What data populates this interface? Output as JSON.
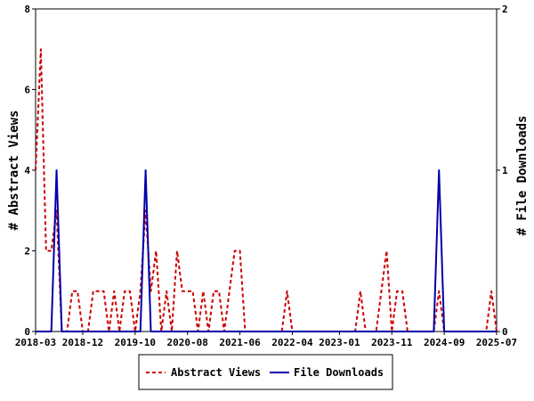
{
  "chart_data": {
    "type": "line",
    "x_tick_labels": [
      "2018-03",
      "2018-12",
      "2019-10",
      "2020-08",
      "2021-06",
      "2022-04",
      "2023-01",
      "2023-11",
      "2024-09",
      "2025-07"
    ],
    "x_start": "2018-03",
    "x_end": "2025-07",
    "left_axis": {
      "label": "# Abstract Views",
      "ylim": [
        0,
        8
      ],
      "ticks": [
        "0",
        "2",
        "4",
        "6",
        "8"
      ]
    },
    "right_axis": {
      "label": "# File Downloads",
      "ylim": [
        0,
        2
      ],
      "ticks": [
        "0",
        "1",
        "2"
      ]
    },
    "grid": false,
    "legend_position": "bottom",
    "series": [
      {
        "name": "Abstract Views",
        "axis": "left",
        "color": "#cc0000",
        "style": "dashed",
        "months": [
          "2018-03",
          "2018-04",
          "2018-05",
          "2018-06",
          "2018-07",
          "2018-08",
          "2018-09",
          "2018-10",
          "2018-11",
          "2018-12",
          "2019-01",
          "2019-02",
          "2019-03",
          "2019-04",
          "2019-05",
          "2019-06",
          "2019-07",
          "2019-08",
          "2019-09",
          "2019-10",
          "2019-11",
          "2019-12",
          "2020-01",
          "2020-02",
          "2020-03",
          "2020-04",
          "2020-05",
          "2020-06",
          "2020-07",
          "2020-08",
          "2020-09",
          "2020-10",
          "2020-11",
          "2020-12",
          "2021-01",
          "2021-02",
          "2021-03",
          "2021-04",
          "2021-05",
          "2021-06",
          "2021-07",
          "2021-08",
          "2021-09",
          "2021-10",
          "2021-11",
          "2021-12",
          "2022-01",
          "2022-02",
          "2022-03",
          "2022-04",
          "2022-05",
          "2022-06",
          "2022-07",
          "2022-08",
          "2022-09",
          "2022-10",
          "2022-11",
          "2022-12",
          "2023-01",
          "2023-02",
          "2023-03",
          "2023-04",
          "2023-05",
          "2023-06",
          "2023-07",
          "2023-08",
          "2023-09",
          "2023-10",
          "2023-11",
          "2023-12",
          "2024-01",
          "2024-02",
          "2024-03",
          "2024-04",
          "2024-05",
          "2024-06",
          "2024-07",
          "2024-08",
          "2024-09",
          "2024-10",
          "2024-11",
          "2024-12",
          "2025-01",
          "2025-02",
          "2025-03",
          "2025-04",
          "2025-05",
          "2025-06",
          "2025-07"
        ],
        "values": [
          4,
          7,
          2,
          2,
          3,
          0,
          0,
          1,
          1,
          0,
          0,
          1,
          1,
          1,
          0,
          1,
          0,
          1,
          1,
          0,
          1,
          3,
          1,
          2,
          0,
          1,
          0,
          2,
          1,
          1,
          1,
          0,
          1,
          0,
          1,
          1,
          0,
          1,
          2,
          2,
          0,
          0,
          0,
          0,
          0,
          0,
          0,
          0,
          1,
          0,
          0,
          0,
          0,
          0,
          0,
          0,
          0,
          0,
          0,
          0,
          0,
          0,
          1,
          0,
          0,
          0,
          1,
          2,
          0,
          1,
          1,
          0,
          0,
          0,
          0,
          0,
          0,
          1,
          0,
          0,
          0,
          0,
          0,
          0,
          0,
          0,
          0,
          1,
          0
        ]
      },
      {
        "name": "File Downloads",
        "axis": "right",
        "color": "#0000aa",
        "style": "solid",
        "months": [
          "2018-03",
          "2018-04",
          "2018-05",
          "2018-06",
          "2018-07",
          "2018-08",
          "2018-09",
          "2018-10",
          "2018-11",
          "2018-12",
          "2019-01",
          "2019-02",
          "2019-03",
          "2019-04",
          "2019-05",
          "2019-06",
          "2019-07",
          "2019-08",
          "2019-09",
          "2019-10",
          "2019-11",
          "2019-12",
          "2020-01",
          "2020-02",
          "2020-03",
          "2020-04",
          "2020-05",
          "2020-06",
          "2020-07",
          "2020-08",
          "2020-09",
          "2020-10",
          "2020-11",
          "2020-12",
          "2021-01",
          "2021-02",
          "2021-03",
          "2021-04",
          "2021-05",
          "2021-06",
          "2021-07",
          "2021-08",
          "2021-09",
          "2021-10",
          "2021-11",
          "2021-12",
          "2022-01",
          "2022-02",
          "2022-03",
          "2022-04",
          "2022-05",
          "2022-06",
          "2022-07",
          "2022-08",
          "2022-09",
          "2022-10",
          "2022-11",
          "2022-12",
          "2023-01",
          "2023-02",
          "2023-03",
          "2023-04",
          "2023-05",
          "2023-06",
          "2023-07",
          "2023-08",
          "2023-09",
          "2023-10",
          "2023-11",
          "2023-12",
          "2024-01",
          "2024-02",
          "2024-03",
          "2024-04",
          "2024-05",
          "2024-06",
          "2024-07",
          "2024-08",
          "2024-09",
          "2024-10",
          "2024-11",
          "2024-12",
          "2025-01",
          "2025-02",
          "2025-03",
          "2025-04",
          "2025-05",
          "2025-06",
          "2025-07"
        ],
        "values": [
          0,
          0,
          0,
          0,
          1,
          0,
          0,
          0,
          0,
          0,
          0,
          0,
          0,
          0,
          0,
          0,
          0,
          0,
          0,
          0,
          0,
          1,
          0,
          0,
          0,
          0,
          0,
          0,
          0,
          0,
          0,
          0,
          0,
          0,
          0,
          0,
          0,
          0,
          0,
          0,
          0,
          0,
          0,
          0,
          0,
          0,
          0,
          0,
          0,
          0,
          0,
          0,
          0,
          0,
          0,
          0,
          0,
          0,
          0,
          0,
          0,
          0,
          0,
          0,
          0,
          0,
          0,
          0,
          0,
          0,
          0,
          0,
          0,
          0,
          0,
          0,
          0,
          1,
          0,
          0,
          0,
          0,
          0,
          0,
          0,
          0,
          0,
          0,
          0
        ]
      }
    ]
  }
}
